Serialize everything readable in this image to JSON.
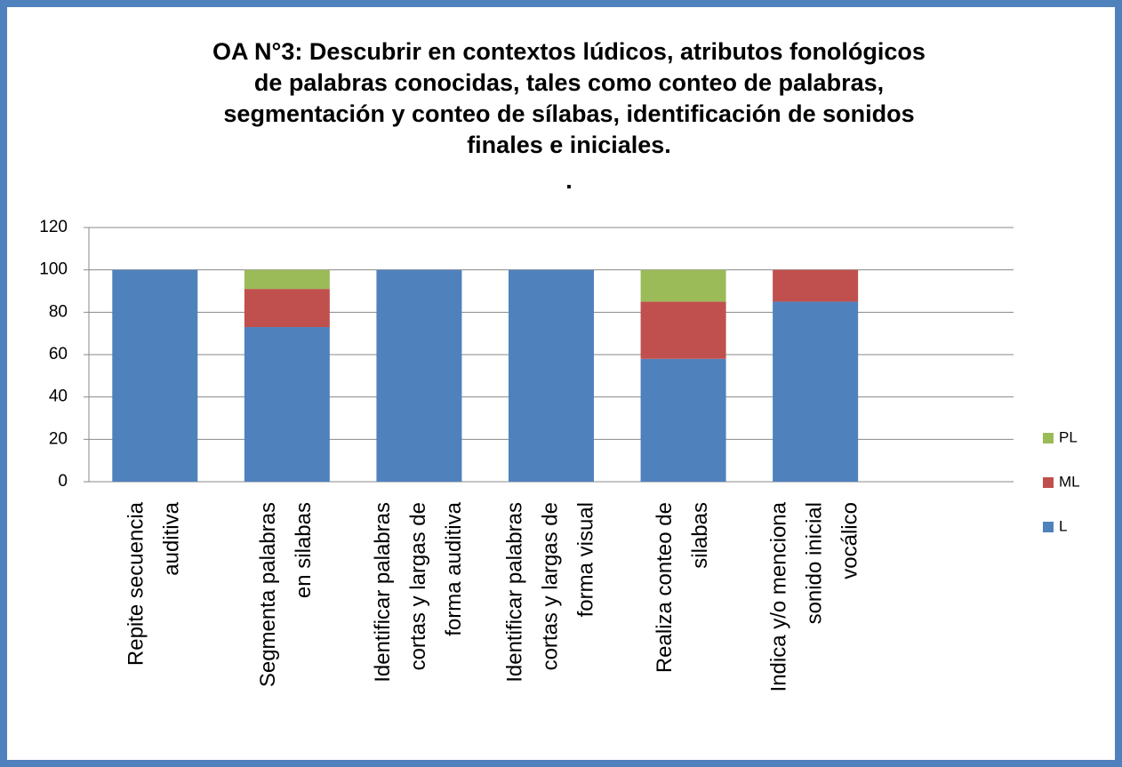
{
  "chart_data": {
    "type": "stacked_bar",
    "title": [
      "OA N°3: Descubrir en contextos lúdicos, atributos fonológicos",
      "de palabras conocidas, tales como conteo de palabras,",
      "segmentación y conteo de sílabas, identificación de sonidos",
      "finales e iniciales."
    ],
    "subtitle": ".",
    "categories": [
      [
        "Repite secuencia",
        "auditiva"
      ],
      [
        "Segmenta palabras",
        "en silabas"
      ],
      [
        "Identificar palabras",
        "cortas y largas de",
        "forma auditiva"
      ],
      [
        "Identificar palabras",
        "cortas y largas de",
        "forma visual"
      ],
      [
        "Realiza conteo de",
        "silabas"
      ],
      [
        "Indica y/o menciona",
        "sonido inicial",
        "vocálico"
      ],
      null
    ],
    "series": [
      {
        "name": "L",
        "color": "#4f81bd",
        "values": [
          100,
          73,
          100,
          100,
          58,
          85,
          null
        ]
      },
      {
        "name": "ML",
        "color": "#c0504d",
        "values": [
          0,
          18,
          0,
          0,
          27,
          15,
          null
        ]
      },
      {
        "name": "PL",
        "color": "#9bbb59",
        "values": [
          0,
          9,
          0,
          0,
          15,
          0,
          null
        ]
      }
    ],
    "ylim": [
      0,
      120
    ],
    "yticks": [
      0,
      20,
      40,
      60,
      80,
      100,
      120
    ],
    "grid": true,
    "legend": "right"
  }
}
